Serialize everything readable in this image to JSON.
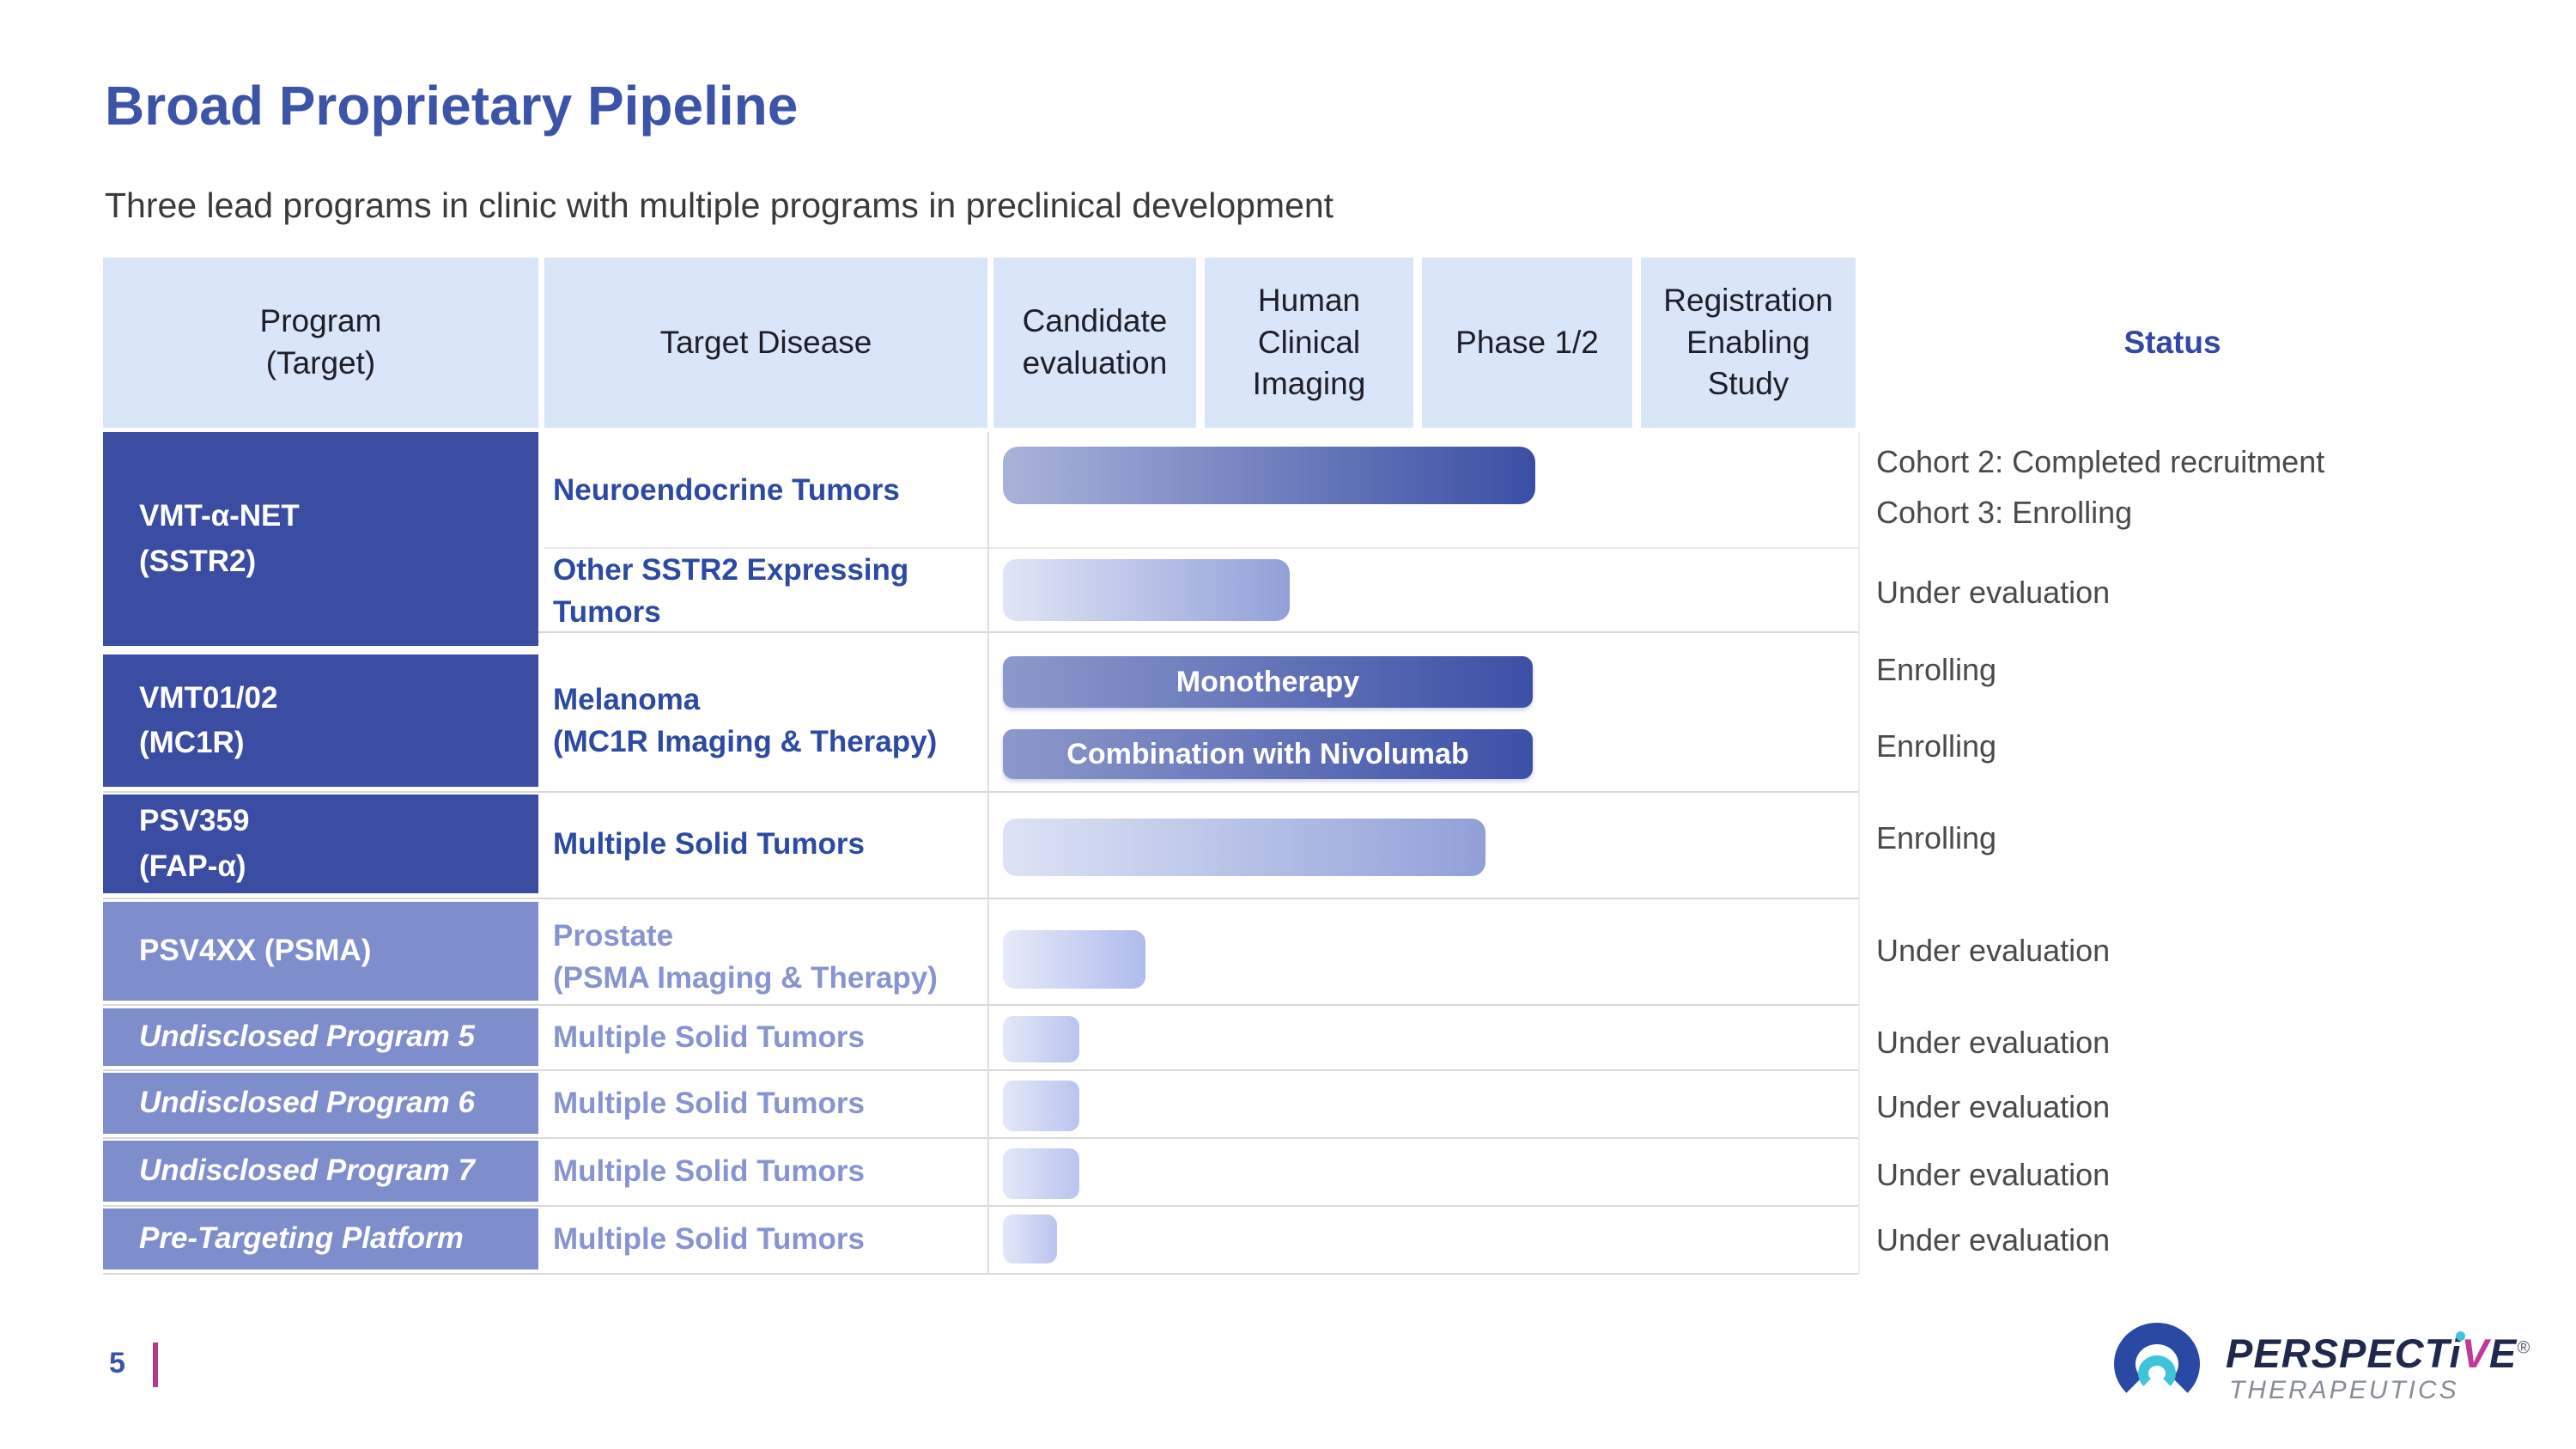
{
  "slide": {
    "title": "Broad Proprietary Pipeline",
    "subtitle": "Three lead programs in clinic with multiple programs in preclinical development",
    "page_number": "5"
  },
  "header": {
    "program": "Program\n(Target)",
    "target_disease": "Target Disease",
    "candidate_evaluation": "Candidate\nevaluation",
    "human_clinical_imaging": "Human\nClinical\nImaging",
    "phase_1_2": "Phase 1/2",
    "registration_enabling_study": "Registration\nEnabling\nStudy",
    "status": "Status"
  },
  "rows": {
    "sstr2": {
      "program": "VMT-α-NET\n(SSTR2)",
      "neuroendocrine": {
        "disease": "Neuroendocrine Tumors",
        "status_line1": "Cohort 2: Completed recruitment",
        "status_line2": "Cohort 3: Enrolling",
        "stage_reached": "Phase 1/2"
      },
      "other_sstr2": {
        "disease": "Other SSTR2 Expressing Tumors",
        "status": "Under evaluation",
        "stage_reached": "Human Clinical Imaging"
      }
    },
    "mc1r": {
      "program": "VMT01/02\n(MC1R)",
      "disease": "Melanoma\n(MC1R Imaging & Therapy)",
      "monotherapy": {
        "bar_label": "Monotherapy",
        "status": "Enrolling",
        "stage_reached": "Phase 1/2"
      },
      "combination": {
        "bar_label": "Combination with Nivolumab",
        "status": "Enrolling",
        "stage_reached": "Phase 1/2"
      }
    },
    "fap": {
      "program": "PSV359\n(FAP-α)",
      "disease": "Multiple Solid Tumors",
      "status": "Enrolling",
      "stage_reached": "Phase 1/2"
    },
    "psma": {
      "program": "PSV4XX (PSMA)",
      "disease": "Prostate\n(PSMA Imaging & Therapy)",
      "status": "Under evaluation",
      "stage_reached": "Candidate evaluation"
    },
    "program5": {
      "program": "Undisclosed Program 5",
      "disease": "Multiple Solid Tumors",
      "status": "Under evaluation",
      "stage_reached": "Candidate evaluation"
    },
    "program6": {
      "program": "Undisclosed Program 6",
      "disease": "Multiple Solid Tumors",
      "status": "Under evaluation",
      "stage_reached": "Candidate evaluation"
    },
    "program7": {
      "program": "Undisclosed Program 7",
      "disease": "Multiple Solid Tumors",
      "status": "Under evaluation",
      "stage_reached": "Candidate evaluation"
    },
    "pretargeting": {
      "program": "Pre-Targeting Platform",
      "disease": "Multiple Solid Tumors",
      "status": "Under evaluation",
      "stage_reached": "Candidate evaluation"
    }
  },
  "logo": {
    "brand_part1": "PERSPECT",
    "brand_i": "i",
    "brand_v": "V",
    "brand_e": "E",
    "registered_mark": "®",
    "brand_bottom": "THERAPEUTICS"
  },
  "colors": {
    "accent_blue": "#3b54a8",
    "program_dark": "#3a4da3",
    "program_light": "#7e8ecd",
    "header_fill": "#d9e6f9",
    "status_header_blue": "#3347a5",
    "page_marker_magenta": "#b23a90",
    "logo_navy": "#20294b",
    "logo_teal": "#3fc3da",
    "logo_magenta": "#c13a98"
  }
}
